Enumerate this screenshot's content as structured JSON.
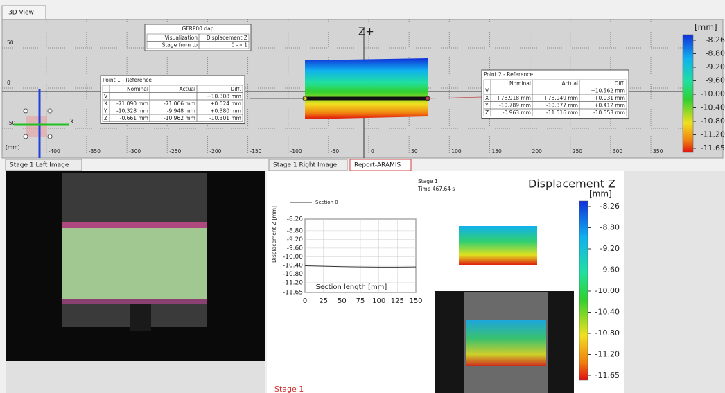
{
  "top_tab": "3D View",
  "view3d": {
    "xticks": [
      -400,
      -350,
      -300,
      -250,
      -200,
      -150,
      -100,
      -50,
      0,
      50,
      100,
      150,
      200,
      250,
      300,
      350
    ],
    "yticks": [
      50,
      0,
      -50
    ],
    "unit": "[mm]",
    "z_label": "Z+",
    "triad_label": "X"
  },
  "info": {
    "title": "GFRP00.dap",
    "rows": [
      [
        "Visualization",
        "Displacement Z"
      ],
      [
        "Stage from to",
        "0 -> 1"
      ]
    ]
  },
  "point1": {
    "title": "Point 1 - Reference",
    "header": [
      null,
      "Nominal",
      "Actual",
      "Diff."
    ],
    "rows": [
      [
        "V",
        null,
        null,
        "+10.308 mm"
      ],
      [
        "X",
        "-71.090 mm",
        "-71.066 mm",
        "+0.024 mm"
      ],
      [
        "Y",
        "-10.328 mm",
        "-9.948 mm",
        "+0.380 mm"
      ],
      [
        "Z",
        "-0.661 mm",
        "-10.962 mm",
        "-10.301 mm"
      ]
    ]
  },
  "point2": {
    "title": "Point 2 - Reference",
    "header": [
      null,
      "Nominal",
      "Actual",
      "Diff."
    ],
    "rows": [
      [
        "V",
        null,
        null,
        "+10.562 mm"
      ],
      [
        "X",
        "+78.918 mm",
        "+78.949 mm",
        "+0.031 mm"
      ],
      [
        "Y",
        "-10.789 mm",
        "-10.377 mm",
        "+0.412 mm"
      ],
      [
        "Z",
        "-0.963 mm",
        "-11.516 mm",
        "-10.553 mm"
      ]
    ]
  },
  "colorbar": {
    "unit": "[mm]",
    "labels": [
      "-8.26",
      "-8.80",
      "-9.20",
      "-9.60",
      "-10.00",
      "-10.40",
      "-10.80",
      "-11.20",
      "-11.65"
    ]
  },
  "bottom_tabs": [
    "Stage 1 Left Image",
    "Stage 1 Right Image",
    "Report-ARAMIS"
  ],
  "report": {
    "stage": "Stage 1",
    "time": "Time  467.64 s",
    "title": "Displacement Z",
    "legend": "Section 0",
    "y_label": "Displacement Z [mm]",
    "x_label": "Section length [mm]",
    "ylim": [
      -11.65,
      -8.26
    ],
    "yticks": [
      {
        "value": -8.26,
        "label": "-8.26"
      },
      {
        "value": -8.8,
        "label": "-8.80"
      },
      {
        "value": -9.2,
        "label": "-9.20"
      },
      {
        "value": -9.6,
        "label": "-9.60"
      },
      {
        "value": -10,
        "label": "-10.00"
      },
      {
        "value": -10.4,
        "label": "-10.40"
      },
      {
        "value": -10.8,
        "label": "-10.80"
      },
      {
        "value": -11.2,
        "label": "-11.20"
      },
      {
        "value": -11.65,
        "label": "-11.65"
      }
    ],
    "xlim": [
      0,
      150
    ],
    "xticks": [
      0,
      25,
      50,
      75,
      100,
      125,
      150
    ],
    "section": {
      "x": [
        0,
        25,
        50,
        75,
        100,
        125,
        150
      ],
      "values": [
        -10.42,
        -10.44,
        -10.46,
        -10.47,
        -10.48,
        -10.48,
        -10.47
      ]
    },
    "colorbar": {
      "unit": "[mm]",
      "labels": [
        "-8.26",
        "-8.80",
        "-9.20",
        "-9.60",
        "-10.00",
        "-10.40",
        "-10.80",
        "-11.20",
        "-11.65"
      ]
    },
    "footer": "Stage 1"
  }
}
